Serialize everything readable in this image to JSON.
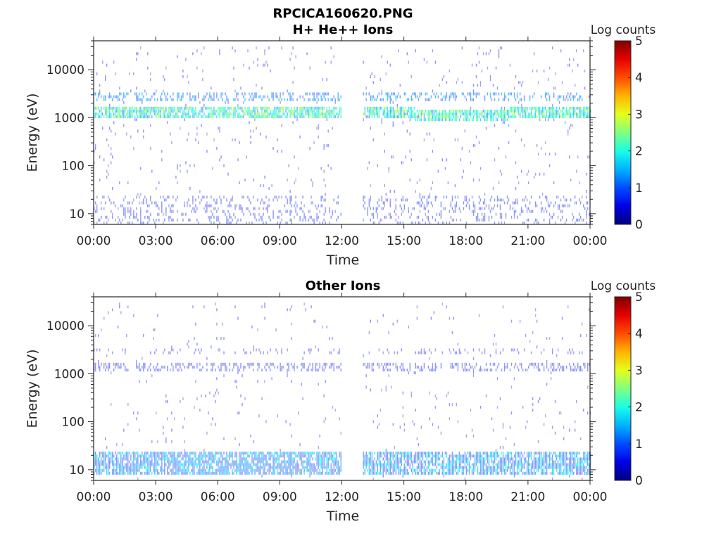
{
  "figure_title": "RPCICA160620.PNG",
  "colorbar_label": "Log counts",
  "colormap": "jet",
  "chart_data": [
    {
      "type": "heatmap",
      "title": "H+ He++ Ions",
      "xlabel": "Time",
      "ylabel": "Energy (eV)",
      "xticks": [
        "00:00",
        "03:00",
        "06:00",
        "09:00",
        "12:00",
        "15:00",
        "18:00",
        "21:00",
        "00:00"
      ],
      "xlim_hours": [
        0,
        24
      ],
      "yscale": "log",
      "yticks": [
        "10",
        "100",
        "1000",
        "10000"
      ],
      "ytick_values": [
        10,
        100,
        1000,
        10000
      ],
      "ylim": [
        6,
        40000
      ],
      "data_gap_hours": [
        12.0,
        13.0
      ],
      "clim": [
        0,
        5
      ],
      "colorbar_ticks": [
        "0",
        "1",
        "2",
        "3",
        "4",
        "5"
      ],
      "features": [
        {
          "name": "main band",
          "energy_eV": [
            950,
            1700
          ],
          "log_counts": [
            1.2,
            2.8
          ],
          "fill": 0.75
        },
        {
          "name": "upper band",
          "energy_eV": [
            2200,
            3200
          ],
          "log_counts": [
            0.8,
            1.6
          ],
          "fill": 0.35
        },
        {
          "name": "low energy",
          "energy_eV": [
            6,
            25
          ],
          "log_counts": [
            0.3,
            1.0
          ],
          "fill": 0.2
        },
        {
          "name": "background",
          "energy_eV": [
            6,
            30000
          ],
          "log_counts": [
            0.2,
            0.8
          ],
          "fill": 0.03
        }
      ]
    },
    {
      "type": "heatmap",
      "title": "Other Ions",
      "xlabel": "Time",
      "ylabel": "Energy (eV)",
      "xticks": [
        "00:00",
        "03:00",
        "06:00",
        "09:00",
        "12:00",
        "15:00",
        "18:00",
        "21:00",
        "00:00"
      ],
      "xlim_hours": [
        0,
        24
      ],
      "yscale": "log",
      "yticks": [
        "10",
        "100",
        "1000",
        "10000"
      ],
      "ytick_values": [
        10,
        100,
        1000,
        10000
      ],
      "ylim": [
        6,
        40000
      ],
      "data_gap_hours": [
        12.0,
        13.0
      ],
      "clim": [
        0,
        5
      ],
      "colorbar_ticks": [
        "0",
        "1",
        "2",
        "3",
        "4",
        "5"
      ],
      "features": [
        {
          "name": "main band",
          "energy_eV": [
            1100,
            1600
          ],
          "log_counts": [
            0.4,
            0.9
          ],
          "fill": 0.35
        },
        {
          "name": "upper band",
          "energy_eV": [
            2500,
            3200
          ],
          "log_counts": [
            0.3,
            0.7
          ],
          "fill": 0.15
        },
        {
          "name": "low energy",
          "energy_eV": [
            8,
            25
          ],
          "log_counts": [
            0.4,
            1.9
          ],
          "fill": 0.75
        },
        {
          "name": "background",
          "energy_eV": [
            6,
            30000
          ],
          "log_counts": [
            0.2,
            0.7
          ],
          "fill": 0.02
        }
      ]
    }
  ]
}
